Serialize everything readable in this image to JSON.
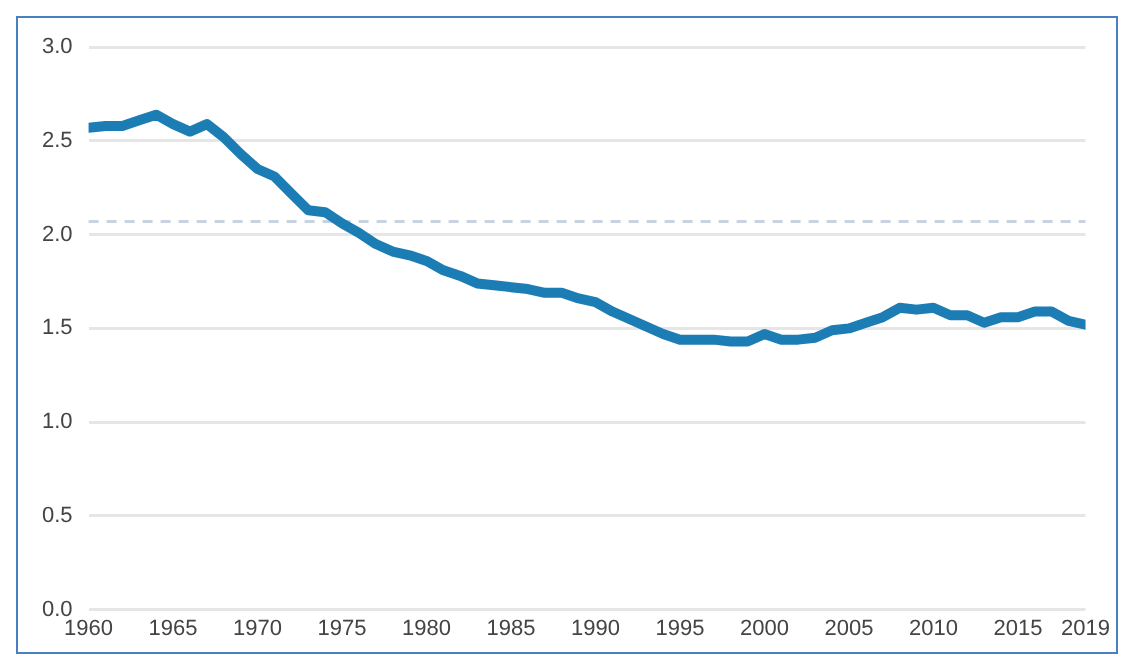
{
  "chart_data": {
    "type": "line",
    "x": [
      1960,
      1961,
      1962,
      1963,
      1964,
      1965,
      1966,
      1967,
      1968,
      1969,
      1970,
      1971,
      1972,
      1973,
      1974,
      1975,
      1976,
      1977,
      1978,
      1979,
      1980,
      1981,
      1982,
      1983,
      1984,
      1985,
      1986,
      1987,
      1988,
      1989,
      1990,
      1991,
      1992,
      1993,
      1994,
      1995,
      1996,
      1997,
      1998,
      1999,
      2000,
      2001,
      2002,
      2003,
      2004,
      2005,
      2006,
      2007,
      2008,
      2009,
      2010,
      2011,
      2012,
      2013,
      2014,
      2015,
      2016,
      2017,
      2018,
      2019
    ],
    "series": [
      {
        "color": "#1c7db5",
        "values": [
          2.57,
          2.58,
          2.58,
          2.61,
          2.64,
          2.59,
          2.55,
          2.59,
          2.52,
          2.43,
          2.35,
          2.31,
          2.22,
          2.13,
          2.12,
          2.06,
          2.01,
          1.95,
          1.91,
          1.89,
          1.86,
          1.81,
          1.78,
          1.74,
          1.73,
          1.72,
          1.71,
          1.69,
          1.69,
          1.66,
          1.64,
          1.59,
          1.55,
          1.51,
          1.47,
          1.44,
          1.44,
          1.44,
          1.43,
          1.43,
          1.47,
          1.44,
          1.44,
          1.45,
          1.49,
          1.5,
          1.53,
          1.56,
          1.61,
          1.6,
          1.61,
          1.57,
          1.57,
          1.53,
          1.56,
          1.56,
          1.59,
          1.59,
          1.54,
          1.52
        ]
      }
    ],
    "xlim": [
      1960,
      2019
    ],
    "xticks": [
      1960,
      1965,
      1970,
      1975,
      1980,
      1985,
      1990,
      1995,
      2000,
      2005,
      2010,
      2015,
      2019
    ],
    "ylim": [
      0,
      3
    ],
    "yticks": [
      {
        "value": 0,
        "label": "0.0"
      },
      0.5,
      {
        "value": 1,
        "label": "1.0"
      },
      1.5,
      {
        "value": 2,
        "label": "2.0"
      },
      2.5,
      {
        "value": 3,
        "label": "3.0"
      }
    ],
    "ref_lines": [
      {
        "axis": "y",
        "value": 2.07,
        "color": "#c8d3df",
        "line_style": "dashed"
      }
    ],
    "grid": "y",
    "legend": false,
    "marker": "none",
    "line_style": "solid"
  }
}
